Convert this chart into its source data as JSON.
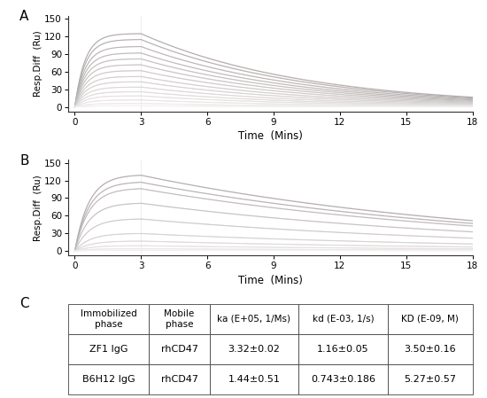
{
  "panel_labels": [
    "A",
    "B",
    "C"
  ],
  "xlabel": "Time  (Mins)",
  "ylabel": "Resp.Diff  (Ru)",
  "xmin": -0.3,
  "xmax": 18,
  "xticks": [
    0,
    3,
    6,
    9,
    12,
    15,
    18
  ],
  "ymin": -8,
  "ymax": 155,
  "yticks": [
    0,
    30,
    60,
    90,
    120,
    150
  ],
  "association_end": 3.0,
  "dissociation_end": 18.0,
  "max_responses_A": [
    125,
    115,
    103,
    92,
    82,
    72,
    62,
    52,
    43,
    34,
    26,
    19,
    12,
    6,
    2
  ],
  "max_responses_B": [
    130,
    118,
    107,
    82,
    55,
    30,
    17,
    9,
    4,
    1.5
  ],
  "kd_A": 0.0022,
  "kd_B": 0.001,
  "ka_obs_A": 2.2,
  "ka_obs_B": 1.6,
  "curve_color": "#cccccc",
  "fit_color_A": "#f4aaaa",
  "fit_color_B": "#f4aaaa",
  "background_color": "#ffffff",
  "table_headers": [
    "Immobilized\nphase",
    "Mobile\nphase",
    "ka (E+05, 1/Ms)",
    "kd (E-03, 1/s)",
    "KD (E-09, M)"
  ],
  "table_row1": [
    "ZF1 IgG",
    "rhCD47",
    "3.32±0.02",
    "1.16±0.05",
    "3.50±0.16"
  ],
  "table_row2": [
    "B6H12 IgG",
    "rhCD47",
    "1.44±0.51",
    "0.743±0.186",
    "5.27±0.57"
  ]
}
